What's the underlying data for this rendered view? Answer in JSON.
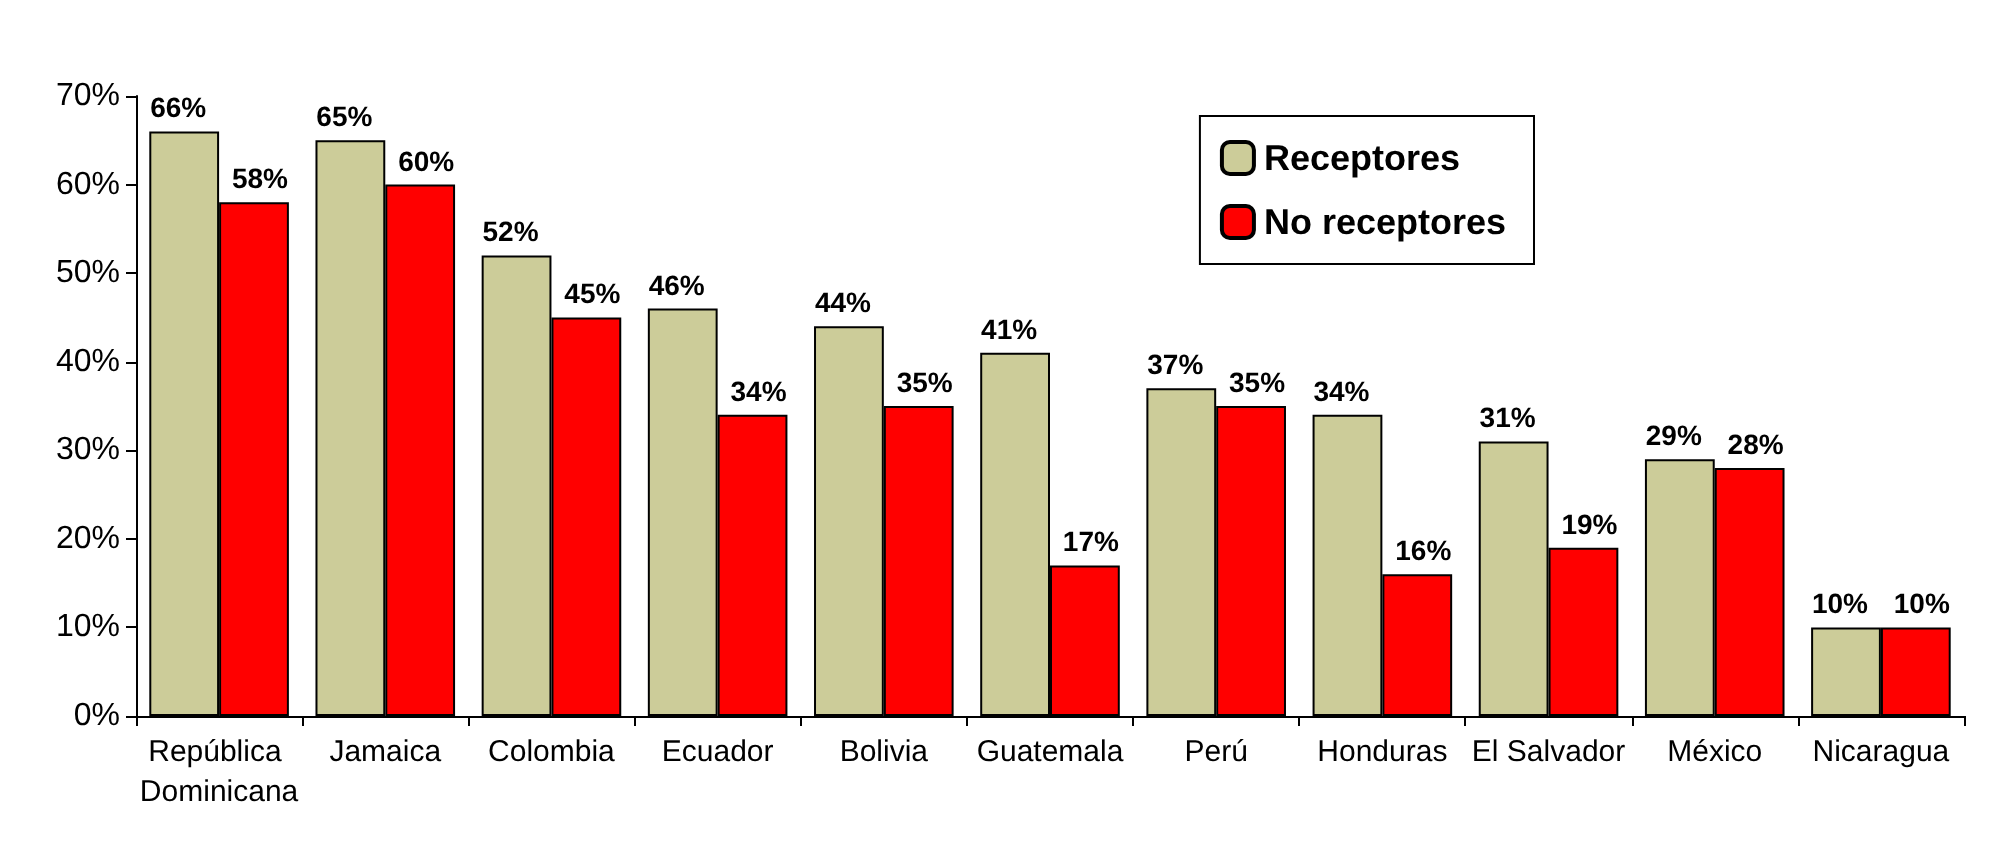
{
  "chart_data": {
    "type": "bar",
    "categories": [
      "República Dominicana",
      "Jamaica",
      "Colombia",
      "Ecuador",
      "Bolivia",
      "Guatemala",
      "Perú",
      "Honduras",
      "El Salvador",
      "México",
      "Nicaragua"
    ],
    "series": [
      {
        "name": "Receptores",
        "color": "#cccc99",
        "values": [
          66,
          65,
          52,
          46,
          44,
          41,
          37,
          34,
          31,
          29,
          10
        ],
        "value_labels": [
          "66%",
          "65%",
          "52%",
          "46%",
          "44%",
          "41%",
          "37%",
          "34%",
          "31%",
          "29%",
          "10%"
        ]
      },
      {
        "name": "No receptores",
        "color": "#ff0000",
        "values": [
          58,
          60,
          45,
          34,
          35,
          17,
          35,
          16,
          19,
          28,
          10
        ],
        "value_labels": [
          "58%",
          "60%",
          "45%",
          "34%",
          "35%",
          "17%",
          "35%",
          "16%",
          "19%",
          "28%",
          "10%"
        ]
      }
    ],
    "ylim": [
      0,
      70
    ],
    "yticks": [
      {
        "value": 0,
        "label": "0%"
      },
      {
        "value": 10,
        "label": "10%"
      },
      {
        "value": 20,
        "label": "20%"
      },
      {
        "value": 30,
        "label": "30%"
      },
      {
        "value": 40,
        "label": "40%"
      },
      {
        "value": 50,
        "label": "50%"
      },
      {
        "value": 60,
        "label": "60%"
      },
      {
        "value": 70,
        "label": "70%"
      }
    ],
    "grid": false,
    "legend": "top right"
  }
}
